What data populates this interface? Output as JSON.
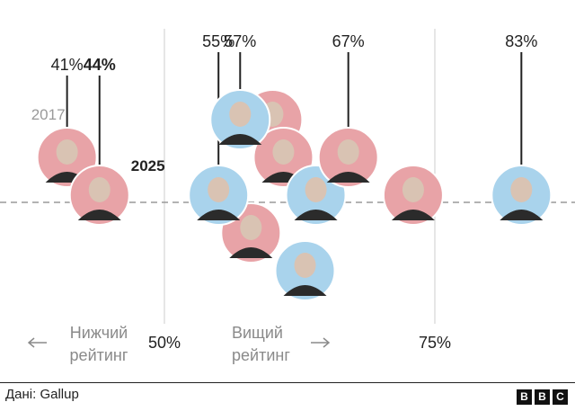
{
  "chart_data": {
    "type": "scatter",
    "x_axis": {
      "ticks": [
        {
          "value": 50,
          "label": "50%"
        },
        {
          "value": 75,
          "label": "75%"
        }
      ],
      "low_label": [
        "Нижчий",
        "рейтинг"
      ],
      "high_label": [
        "Вищий",
        "рейтинг"
      ]
    },
    "points": [
      {
        "value": 41,
        "label": "41%",
        "year": "2017",
        "party": "republican",
        "highlight": false,
        "row": 0,
        "label_level": 1
      },
      {
        "value": 44,
        "label": "44%",
        "year": "2025",
        "party": "republican",
        "highlight": true,
        "row": 1,
        "label_level": 1
      },
      {
        "value": 55,
        "label": "55%",
        "party": "democrat",
        "highlight": false,
        "row": 1,
        "label_level": 0
      },
      {
        "value": 57,
        "label": "57%",
        "party": "democrat",
        "highlight": false,
        "row": -1,
        "label_level": 0
      },
      {
        "value": 67,
        "label": "67%",
        "party": "republican",
        "highlight": false,
        "row": 0,
        "label_level": 0
      },
      {
        "value": 83,
        "label": "83%",
        "party": "democrat",
        "highlight": false,
        "row": 1,
        "label_level": 0
      }
    ],
    "other_portraits": [
      {
        "value": 60,
        "party": "republican",
        "row": -1
      },
      {
        "value": 61,
        "party": "republican",
        "row": 0
      },
      {
        "value": 58,
        "party": "republican",
        "row": 2
      },
      {
        "value": 64,
        "party": "democrat",
        "row": 1
      },
      {
        "value": 63,
        "party": "democrat",
        "row": 3
      },
      {
        "value": 73,
        "party": "republican",
        "row": 1
      }
    ],
    "colors": {
      "republican": "#e8a3a7",
      "democrat": "#a9d3ec",
      "grid": "#cccccc",
      "baseline": "#9a9a9a"
    }
  },
  "footer": {
    "source": "Дані: Gallup",
    "logo_letters": [
      "B",
      "B",
      "C"
    ]
  }
}
